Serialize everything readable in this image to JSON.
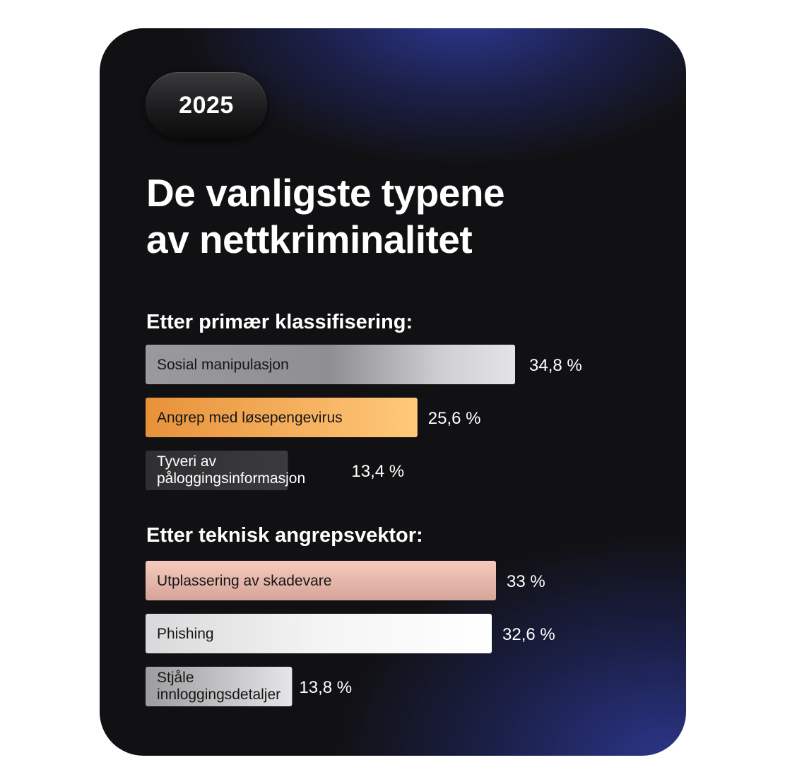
{
  "year_badge": "2025",
  "title_lines": [
    "De vanligste typene",
    "av nettkriminalitet"
  ],
  "colors": {
    "background": "#111113",
    "accent_blue": "#2b358f",
    "text": "#ffffff"
  },
  "chart_data": [
    {
      "type": "bar",
      "orientation": "horizontal",
      "title": "Etter primær klassifisering:",
      "categories": [
        "Sosial manipulasjon",
        "Angrep med løsepengevirus",
        "Tyveri av påloggingsinformasjon"
      ],
      "values": [
        34.8,
        25.6,
        13.4
      ],
      "value_labels": [
        "34,8 %",
        "25,6 %",
        "13,4 %"
      ],
      "unit": "%",
      "bar_colors": [
        "#9a9a9c",
        "#f2a651",
        "#363638"
      ],
      "label_colors": [
        "#161616",
        "#161616",
        "#ffffff"
      ]
    },
    {
      "type": "bar",
      "orientation": "horizontal",
      "title": "Etter teknisk angrepsvektor:",
      "categories": [
        "Utplassering av skadevare",
        "Phishing",
        "Stjåle innloggingsdetaljer"
      ],
      "values": [
        33,
        32.6,
        13.8
      ],
      "value_labels": [
        "33 %",
        "32,6 %",
        "13,8 %"
      ],
      "unit": "%",
      "bar_colors": [
        "#e4b6aa",
        "#ededed",
        "#c2c2c4"
      ],
      "label_colors": [
        "#161616",
        "#161616",
        "#161616"
      ]
    }
  ]
}
